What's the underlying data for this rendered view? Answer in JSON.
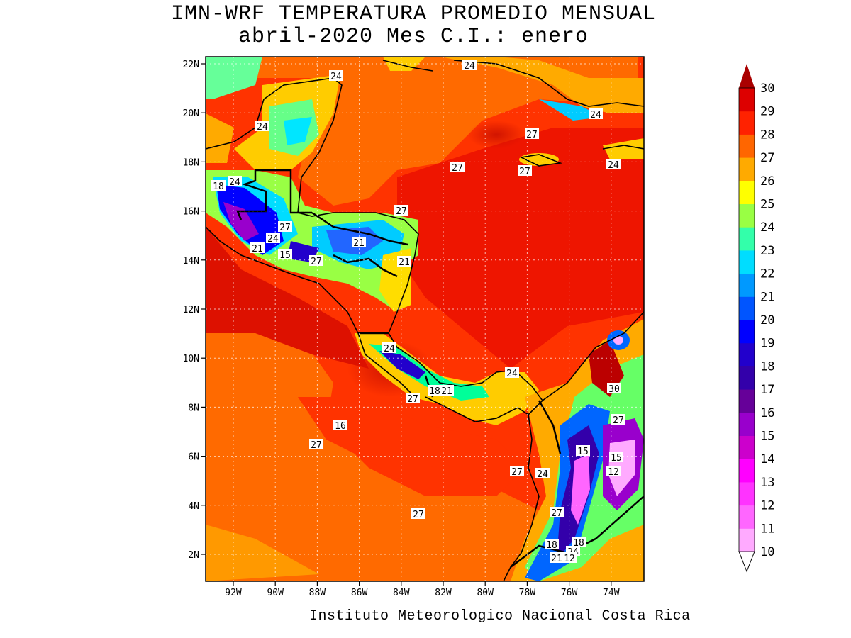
{
  "title": {
    "line1": "IMN-WRF  TEMPERATURA PROMEDIO MENSUAL",
    "line2": "abril-2020 Mes C.I.: enero"
  },
  "credit": "Instituto Meteorologico Nacional Costa Rica",
  "axes": {
    "lat_labels": [
      "2N",
      "4N",
      "6N",
      "8N",
      "10N",
      "12N",
      "14N",
      "16N",
      "18N",
      "20N",
      "22N"
    ],
    "lon_labels": [
      "92W",
      "90W",
      "88W",
      "86W",
      "84W",
      "82W",
      "80W",
      "78W",
      "76W",
      "74W"
    ]
  },
  "colorbar": {
    "levels": [
      "10",
      "11",
      "12",
      "13",
      "14",
      "15",
      "16",
      "17",
      "18",
      "19",
      "20",
      "21",
      "22",
      "23",
      "24",
      "25",
      "26",
      "27",
      "28",
      "29",
      "30"
    ],
    "colors": [
      "#ffaaff",
      "#ff66ff",
      "#ff33ff",
      "#ff00ff",
      "#cc00cc",
      "#9900cc",
      "#660099",
      "#3300aa",
      "#2200cc",
      "#0000ff",
      "#0055ff",
      "#0099ff",
      "#00ddff",
      "#33ffaa",
      "#99ff44",
      "#ffff00",
      "#ffaa00",
      "#ff6600",
      "#ff2200",
      "#dd0000",
      "#aa0000"
    ]
  },
  "contour_labels": [
    {
      "text": "24"
    },
    {
      "text": "24"
    },
    {
      "text": "24"
    },
    {
      "text": "24"
    },
    {
      "text": "27"
    },
    {
      "text": "24"
    },
    {
      "text": "27"
    },
    {
      "text": "27"
    },
    {
      "text": "27"
    },
    {
      "text": "18"
    },
    {
      "text": "24"
    },
    {
      "text": "27"
    },
    {
      "text": "24"
    },
    {
      "text": "21"
    },
    {
      "text": "21"
    },
    {
      "text": "15"
    },
    {
      "text": "27"
    },
    {
      "text": "21"
    },
    {
      "text": "24"
    },
    {
      "text": "24"
    },
    {
      "text": "27"
    },
    {
      "text": "18"
    },
    {
      "text": "21"
    },
    {
      "text": "27"
    },
    {
      "text": "30"
    },
    {
      "text": "27"
    },
    {
      "text": "15"
    },
    {
      "text": "15"
    },
    {
      "text": "12"
    },
    {
      "text": "27"
    },
    {
      "text": "27"
    },
    {
      "text": "24"
    },
    {
      "text": "27"
    },
    {
      "text": "18"
    },
    {
      "text": "18"
    },
    {
      "text": "24"
    },
    {
      "text": "21"
    },
    {
      "text": "12"
    },
    {
      "text": "16"
    }
  ]
}
